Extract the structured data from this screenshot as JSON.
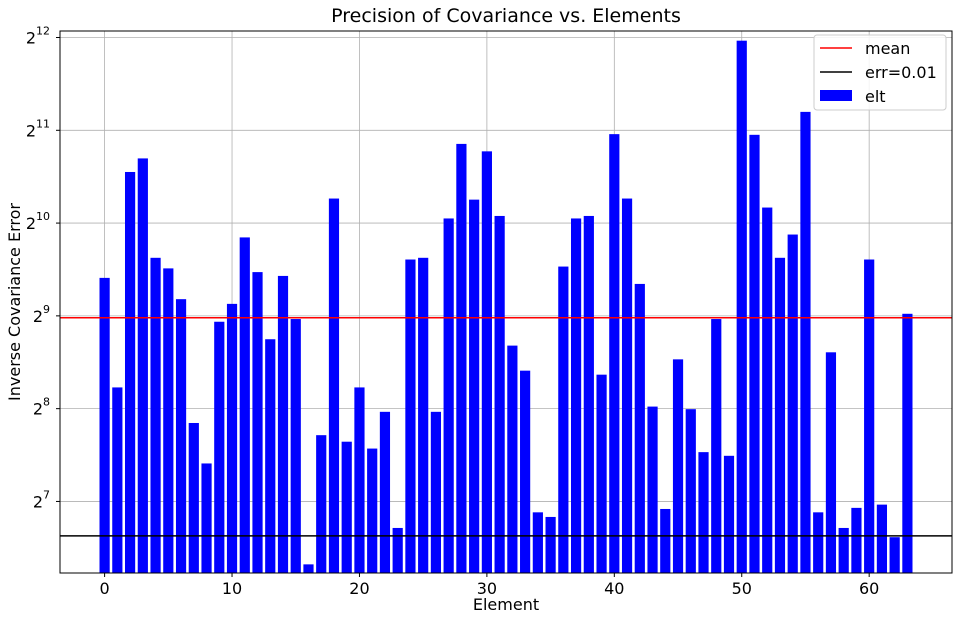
{
  "chart_data": {
    "type": "bar",
    "title": "Precision of Covariance vs. Elements",
    "xlabel": "Element",
    "ylabel": "Inverse Covariance Error",
    "y_scale": "log2",
    "xlim": [
      -3.5,
      66.5
    ],
    "ylim": [
      75,
      4300
    ],
    "xticks": [
      0,
      10,
      20,
      30,
      40,
      50,
      60
    ],
    "yticks": [
      {
        "value": 128,
        "base": "2",
        "exp": "7"
      },
      {
        "value": 256,
        "base": "2",
        "exp": "8"
      },
      {
        "value": 512,
        "base": "2",
        "exp": "9"
      },
      {
        "value": 1024,
        "base": "2",
        "exp": "10"
      },
      {
        "value": 2048,
        "base": "2",
        "exp": "11"
      },
      {
        "value": 4096,
        "base": "2",
        "exp": "12"
      }
    ],
    "grid": true,
    "legend_position": "top-right",
    "colors": {
      "bar": "#0000ff",
      "mean": "#ff0000",
      "err": "#000000"
    },
    "series": [
      {
        "name": "elt",
        "x": [
          0,
          1,
          2,
          3,
          4,
          5,
          6,
          7,
          8,
          9,
          10,
          11,
          12,
          13,
          14,
          15,
          16,
          17,
          18,
          19,
          20,
          21,
          22,
          23,
          24,
          25,
          26,
          27,
          28,
          29,
          30,
          31,
          32,
          33,
          34,
          35,
          36,
          37,
          38,
          39,
          40,
          41,
          42,
          43,
          44,
          45,
          46,
          47,
          48,
          49,
          50,
          51,
          52,
          53,
          54,
          55,
          56,
          57,
          58,
          59,
          60,
          61,
          62,
          63
        ],
        "values": [
          680,
          300,
          1500,
          1660,
          790,
          730,
          580,
          230,
          170,
          490,
          560,
          920,
          710,
          430,
          690,
          500,
          80,
          210,
          1230,
          200,
          300,
          190,
          250,
          105,
          780,
          790,
          250,
          1060,
          1850,
          1220,
          1750,
          1080,
          410,
          340,
          118,
          114,
          740,
          1060,
          1080,
          330,
          1990,
          1230,
          650,
          260,
          121,
          370,
          255,
          185,
          500,
          180,
          4000,
          1980,
          1150,
          790,
          940,
          2350,
          118,
          390,
          105,
          122,
          780,
          125,
          98,
          520
        ]
      }
    ],
    "reference_lines": [
      {
        "name": "mean",
        "value": 505
      },
      {
        "name": "err=0.01",
        "value": 99
      }
    ]
  }
}
